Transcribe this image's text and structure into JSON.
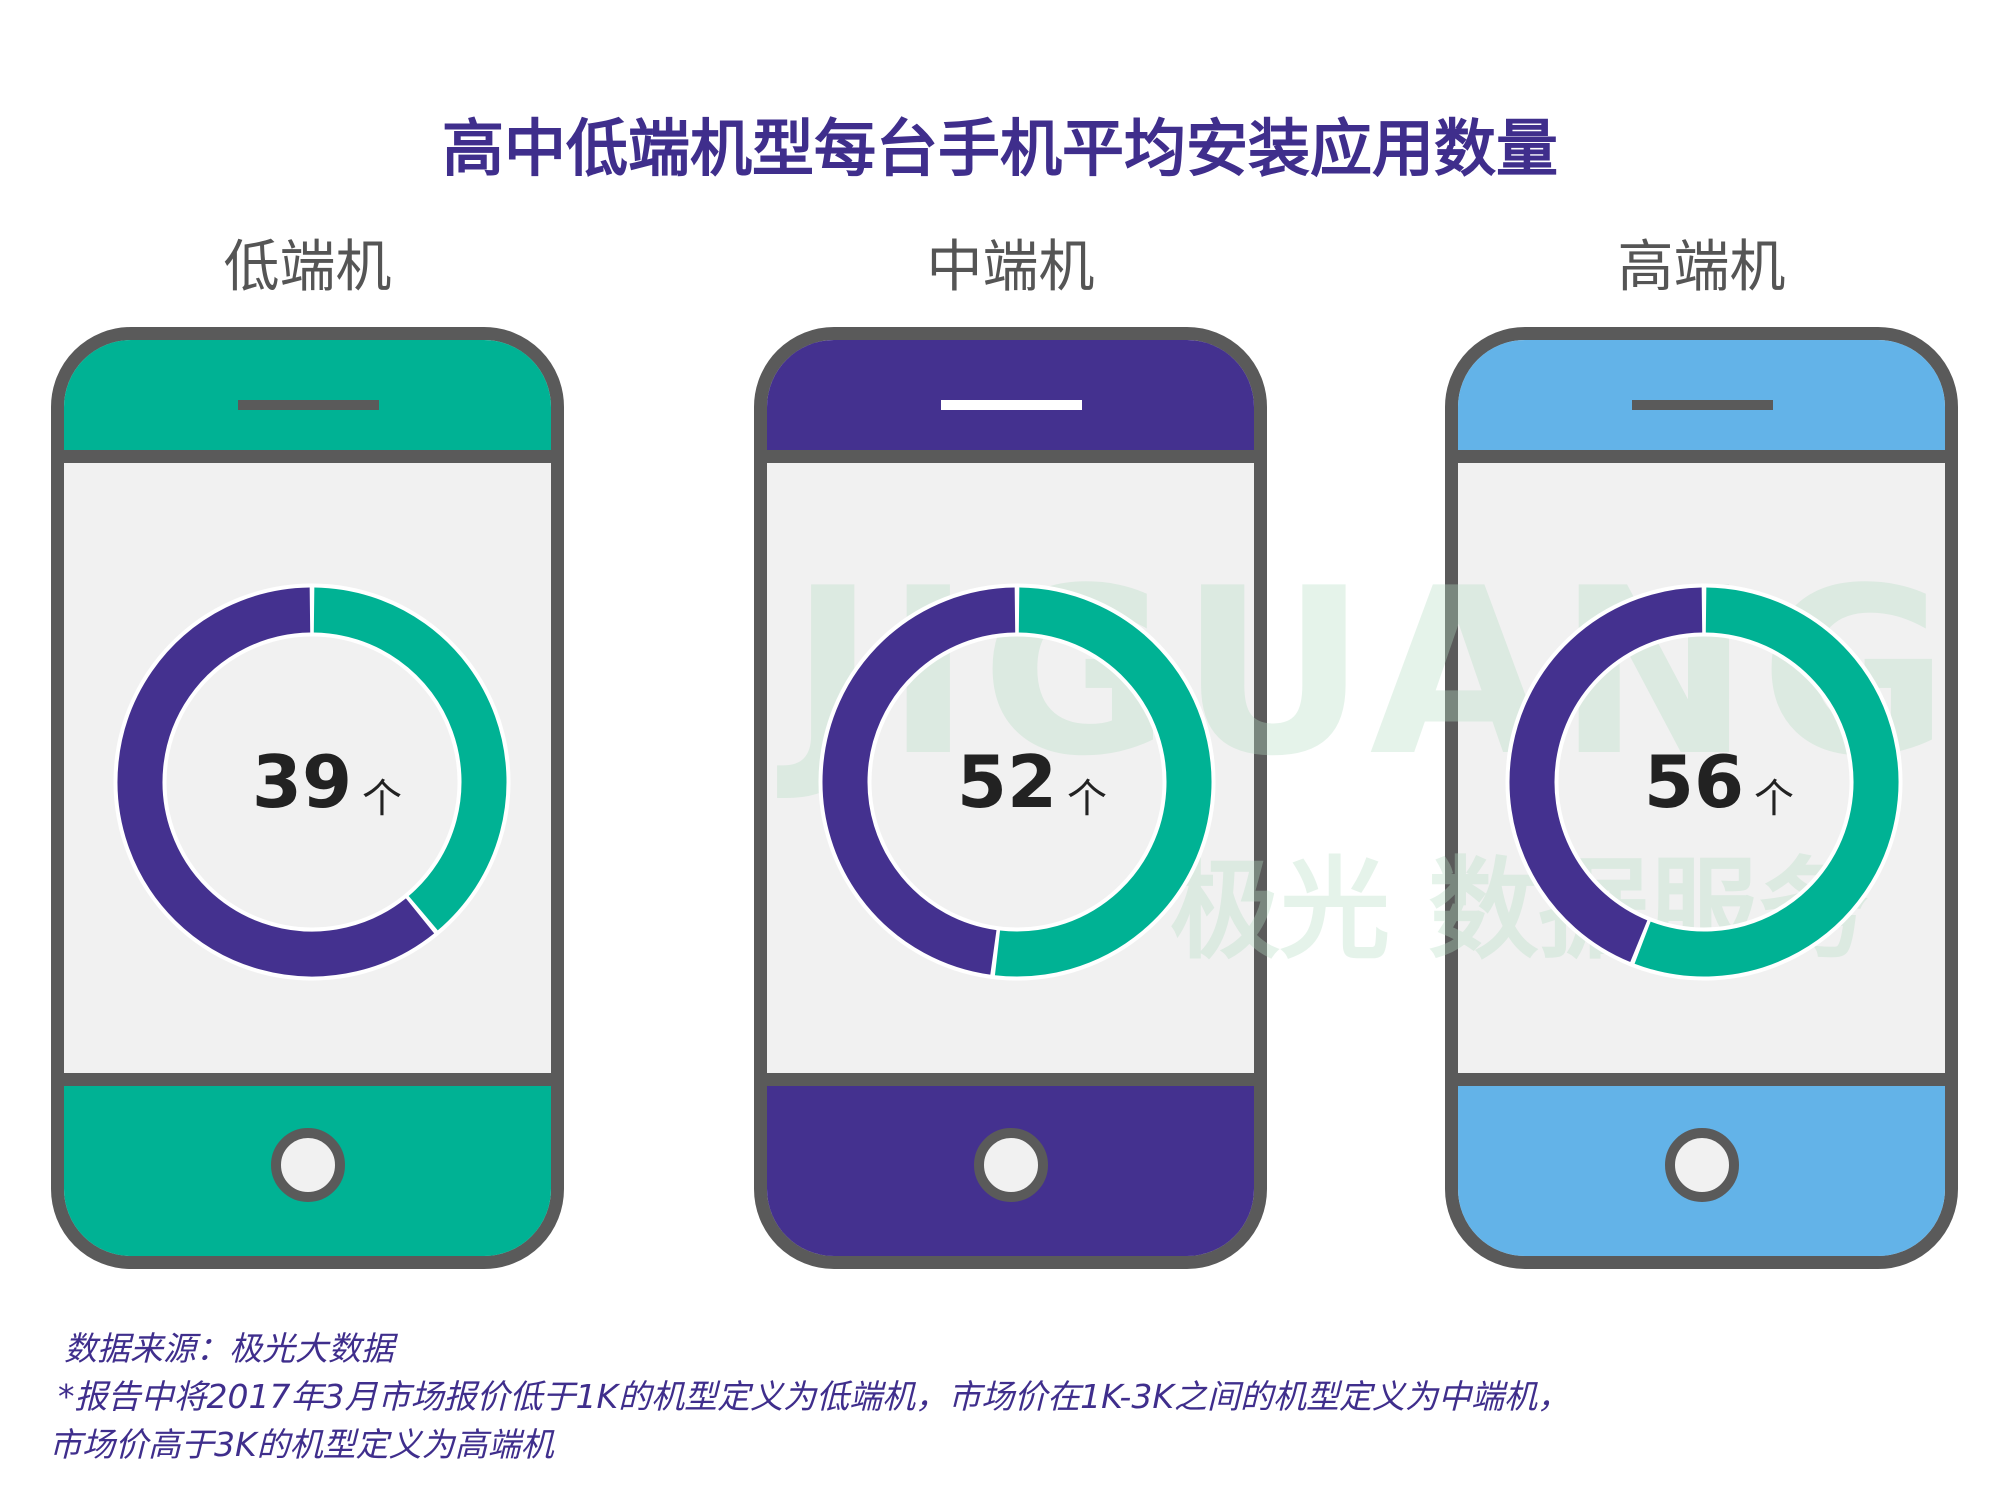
{
  "title": "高中低端机型每台手机平均安装应用数量",
  "watermark": {
    "brand": "JIGUANG",
    "tagline": "极光 数据服务"
  },
  "colors": {
    "green": "#00b294",
    "purple": "#44318f",
    "blue": "#63b3e8",
    "frame": "#5a5a5a",
    "title": "#3f2e8c"
  },
  "chart_data": {
    "type": "pie",
    "title": "高中低端机型每台手机平均安装应用数量",
    "unit": "个",
    "categories": [
      "低端机",
      "中端机",
      "高端机"
    ],
    "values": [
      39,
      52,
      56
    ],
    "ring_max": 100
  },
  "phones": [
    {
      "label": "低端机",
      "value": "39",
      "unit": "个",
      "body_color": "#00b294",
      "speaker_color": "#5a5a5a"
    },
    {
      "label": "中端机",
      "value": "52",
      "unit": "个",
      "body_color": "#44318f",
      "speaker_color": "#ffffff"
    },
    {
      "label": "高端机",
      "value": "56",
      "unit": "个",
      "body_color": "#63b3e8",
      "speaker_color": "#5a5a5a"
    }
  ],
  "footnotes": {
    "source": "数据来源：极光大数据",
    "line1": "*报告中将2017年3月市场报价低于1K的机型定义为低端机，市场价在1K-3K之间的机型定义为中端机，",
    "line2": "市场价高于3K的机型定义为高端机"
  }
}
